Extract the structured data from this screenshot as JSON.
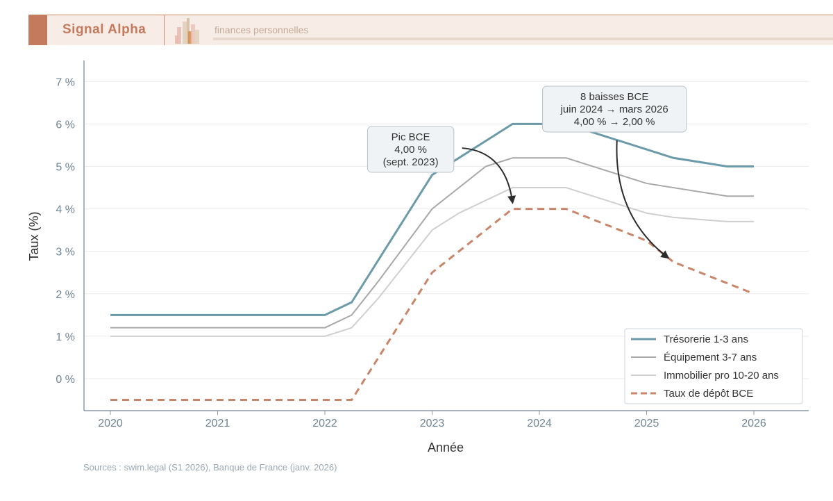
{
  "header": {
    "brand": "Signal Alpha",
    "tagline": "finances personnelles",
    "brand_color": "#c47b5d"
  },
  "chart_data": {
    "type": "line",
    "xlabel": "Année",
    "ylabel": "Taux (%)",
    "xlim": [
      2020,
      2026
    ],
    "ylim": [
      -0.75,
      7.5
    ],
    "xticks": [
      2020,
      2021,
      2022,
      2023,
      2024,
      2025,
      2026
    ],
    "yticks": [
      {
        "v": 0,
        "label": "0 %"
      },
      {
        "v": 1,
        "label": "1 %"
      },
      {
        "v": 2,
        "label": "2 %"
      },
      {
        "v": 3,
        "label": "3 %"
      },
      {
        "v": 4,
        "label": "4 %"
      },
      {
        "v": 5,
        "label": "5 %"
      },
      {
        "v": 6,
        "label": "6 %"
      },
      {
        "v": 7,
        "label": "7 %"
      }
    ],
    "grid": "horizontal",
    "legend_position": "bottom-right",
    "series": [
      {
        "name": "Trésorerie 1-3 ans",
        "color": "#6b9aa8",
        "style": "solid",
        "width": 3,
        "points": [
          [
            2020,
            1.5
          ],
          [
            2022,
            1.5
          ],
          [
            2022.25,
            1.8
          ],
          [
            2023,
            4.8
          ],
          [
            2023.75,
            6.0
          ],
          [
            2024.25,
            6.0
          ],
          [
            2025.25,
            5.2
          ],
          [
            2025.75,
            5.0
          ],
          [
            2026,
            5.0
          ]
        ]
      },
      {
        "name": "Équipement 3-7 ans",
        "color": "#a8a8a8",
        "style": "solid",
        "width": 2,
        "points": [
          [
            2020,
            1.2
          ],
          [
            2022,
            1.2
          ],
          [
            2022.25,
            1.5
          ],
          [
            2022.5,
            2.3
          ],
          [
            2023,
            4.0
          ],
          [
            2023.5,
            5.0
          ],
          [
            2023.75,
            5.2
          ],
          [
            2024.25,
            5.2
          ],
          [
            2025,
            4.6
          ],
          [
            2025.75,
            4.3
          ],
          [
            2026,
            4.3
          ]
        ]
      },
      {
        "name": "Immobilier pro 10-20 ans",
        "color": "#cfcfcf",
        "style": "solid",
        "width": 2,
        "points": [
          [
            2020,
            1.0
          ],
          [
            2022,
            1.0
          ],
          [
            2022.25,
            1.2
          ],
          [
            2022.5,
            1.9
          ],
          [
            2023,
            3.5
          ],
          [
            2023.25,
            3.9
          ],
          [
            2023.75,
            4.5
          ],
          [
            2024.25,
            4.5
          ],
          [
            2025,
            3.9
          ],
          [
            2025.25,
            3.8
          ],
          [
            2025.75,
            3.7
          ],
          [
            2026,
            3.7
          ]
        ]
      },
      {
        "name": "Taux de dépôt BCE",
        "color": "#c9856a",
        "style": "dashed",
        "width": 3,
        "points": [
          [
            2020,
            -0.5
          ],
          [
            2022.25,
            -0.5
          ],
          [
            2023,
            2.5
          ],
          [
            2023.75,
            4.0
          ],
          [
            2024.25,
            4.0
          ],
          [
            2025,
            3.25
          ],
          [
            2025.25,
            2.75
          ],
          [
            2026,
            2.0
          ]
        ]
      }
    ],
    "annotations": [
      {
        "lines": [
          "Pic BCE",
          "4,00 %",
          "(sept. 2023)"
        ],
        "box_at": [
          2022.8,
          5.4
        ],
        "arrow_to": [
          2023.75,
          4.15
        ]
      },
      {
        "lines": [
          "8 baisses BCE",
          "juin 2024 → mars 2026",
          "4,00 % → 2,00 %"
        ],
        "box_at": [
          2024.7,
          6.35
        ],
        "arrow_to": [
          2025.2,
          2.85
        ]
      }
    ]
  },
  "footer": {
    "sources": "Sources : swim.legal (S1 2026), Banque de France (janv. 2026)"
  }
}
